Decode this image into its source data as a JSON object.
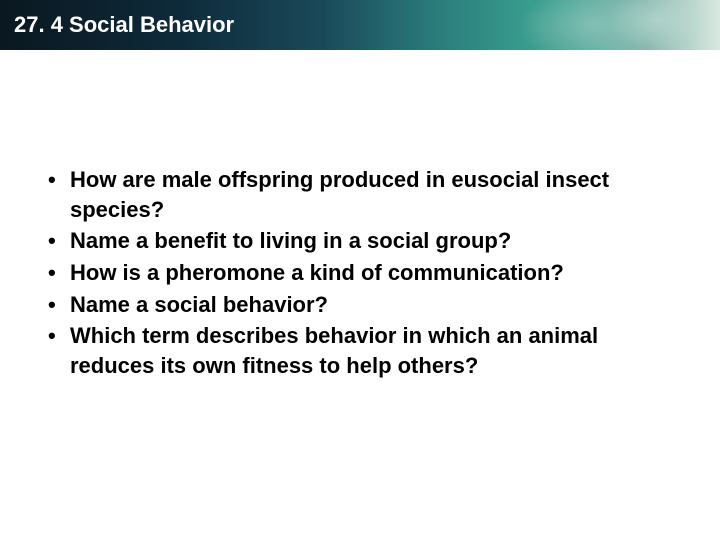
{
  "header": {
    "title": "27. 4 Social Behavior",
    "bg_gradient": [
      "#0a1820",
      "#0e2a3a",
      "#1a4a5a",
      "#2a7a7a",
      "#3aa090",
      "#8ab8b0",
      "#d8e8e0"
    ],
    "text_color": "#ffffff",
    "title_fontsize": 22
  },
  "content": {
    "text_color": "#000000",
    "font_weight": "bold",
    "fontsize": 22,
    "bullets": [
      "How are male offspring produced in eusocial insect species?",
      "Name a benefit to living in a social group?",
      "How is a pheromone a kind of communication?",
      "Name a social behavior?",
      "Which term describes behavior in which an animal reduces its own fitness to help others?"
    ]
  }
}
